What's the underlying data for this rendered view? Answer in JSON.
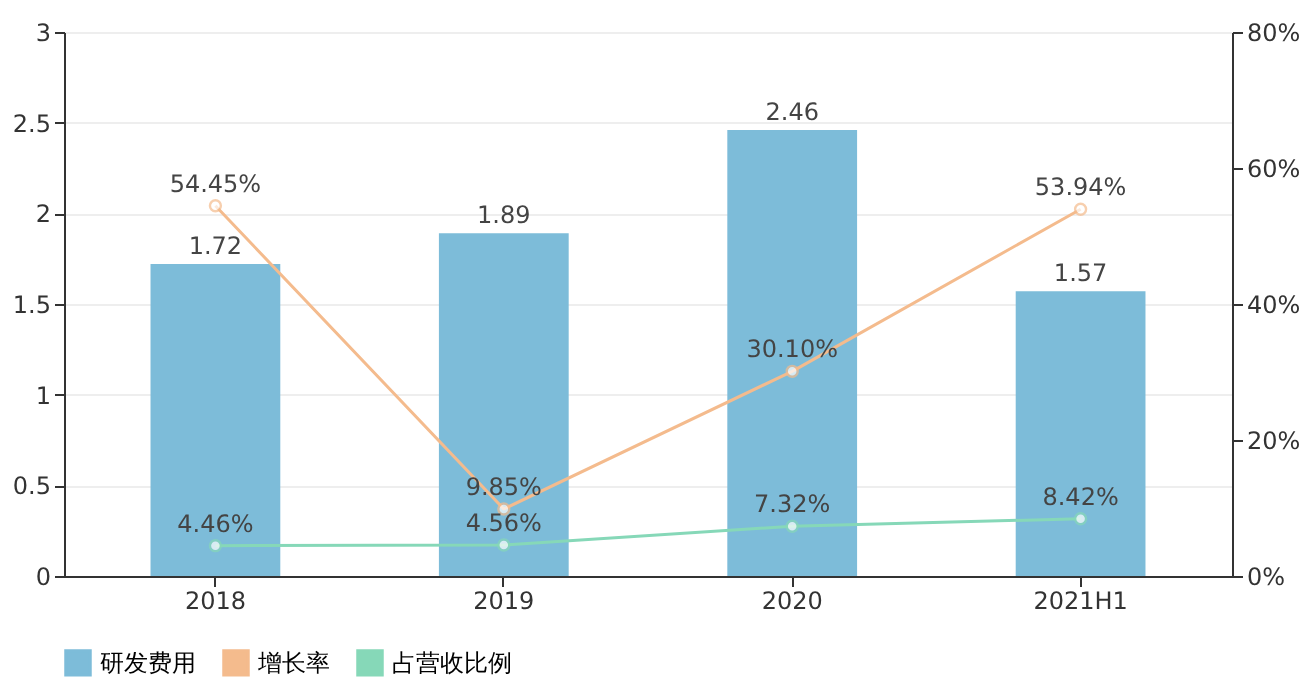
{
  "chart_data": {
    "type": "bar",
    "categories": [
      "2018",
      "2019",
      "2020",
      "2021H1"
    ],
    "series": [
      {
        "name": "研发费用",
        "color": "#7dbcd9",
        "values": [
          1.72,
          1.89,
          2.46,
          1.57
        ],
        "value_labels": [
          "1.72",
          "1.89",
          "2.46",
          "1.57"
        ]
      },
      {
        "name": "增长率",
        "type": "line",
        "axis": "y2",
        "color": "#f4bb8d",
        "values": [
          54.45,
          9.85,
          30.1,
          53.94
        ],
        "value_labels": [
          "54.45%",
          "9.85%",
          "30.10%",
          "53.94%"
        ]
      },
      {
        "name": "占营收比例",
        "type": "line",
        "axis": "y2",
        "color": "#86d8b8",
        "values": [
          4.46,
          4.56,
          7.32,
          8.42
        ],
        "value_labels": [
          "4.46%",
          "4.56%",
          "7.32%",
          "8.42%"
        ]
      }
    ],
    "ylim": [
      0,
      3
    ],
    "yticks": [
      0,
      0.5,
      1,
      1.5,
      2,
      2.5,
      3
    ],
    "y2lim": [
      0,
      80
    ],
    "y2ticks": [
      {
        "value": 0,
        "label": "0%"
      },
      {
        "value": 20,
        "label": "20%"
      },
      {
        "value": 40,
        "label": "40%"
      },
      {
        "value": 60,
        "label": "60%"
      },
      {
        "value": 80,
        "label": "80%"
      }
    ],
    "grid": "y",
    "legend": "bottom",
    "marker": "circle"
  }
}
